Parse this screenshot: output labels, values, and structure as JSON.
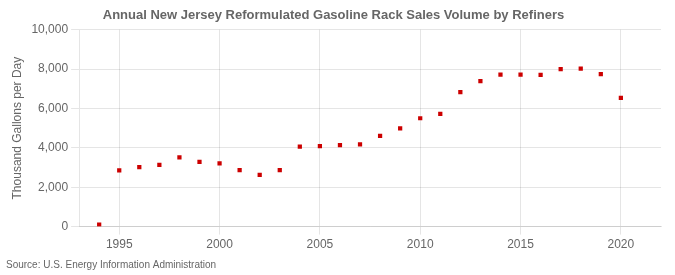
{
  "chart_data": {
    "type": "scatter",
    "title": "Annual New Jersey Reformulated Gasoline Rack Sales Volume by Refiners",
    "y_label": "Thousand Gallons per Day",
    "annotations": [
      "Source: U.S. Energy Information Administration"
    ],
    "x": [
      1994,
      1995,
      1996,
      1997,
      1998,
      1999,
      2000,
      2001,
      2002,
      2003,
      2004,
      2005,
      2006,
      2007,
      2008,
      2009,
      2010,
      2011,
      2012,
      2013,
      2014,
      2015,
      2016,
      2017,
      2018,
      2019,
      2020
    ],
    "values": [
      100,
      2850,
      3020,
      3130,
      3520,
      3280,
      3210,
      2870,
      2620,
      2870,
      4060,
      4080,
      4130,
      4180,
      4610,
      4980,
      5500,
      5720,
      6820,
      7380,
      7720,
      7720,
      7700,
      7990,
      8020,
      7740,
      6530
    ],
    "color": "#cc0000",
    "marker": "square",
    "xlim": [
      1993,
      2022
    ],
    "xticks": [
      1995,
      2000,
      2005,
      2010,
      2015,
      2020
    ],
    "ylim": [
      0,
      10000
    ],
    "yticks": [
      0,
      {
        "value": 2000,
        "label": "2,000"
      },
      {
        "value": 4000,
        "label": "4,000"
      },
      {
        "value": 6000,
        "label": "6,000"
      },
      {
        "value": 8000,
        "label": "8,000"
      },
      {
        "value": 10000,
        "label": "10,000"
      }
    ],
    "grid": true
  }
}
